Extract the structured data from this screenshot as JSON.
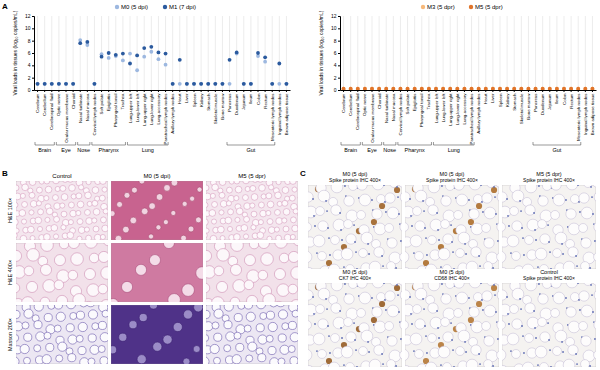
{
  "chart_data": [
    {
      "type": "scatter",
      "y_label": "Viral loads in tissues (log₁₀ copies/mL)",
      "categories": [
        "Cerebrum",
        "Cerebellum",
        "Cerebrospinal fluid",
        "Optic nerve",
        "Ocular mucus membrane",
        "Choroid",
        "Nasal turbinate",
        "Nasal mucosa",
        "Cervical lymph nodes",
        "Soft palate",
        "Epiglottis",
        "Pharyngeal tonsil",
        "Trachea",
        "Lung-upper left",
        "Lung-lower left",
        "Lung-upper right",
        "Lung-lower right",
        "Lung-accessory",
        "Paratracheal lymph nodes",
        "Axillary lymph nodes",
        "Heart",
        "Liver",
        "Spleen",
        "Kidney",
        "Stomach",
        "Skeletal muscle",
        "Bone marrow",
        "Pancreas",
        "Duodenum",
        "Jejunum",
        "Ileum",
        "Colon",
        "Rectum",
        "Mesenteric lymph nodes",
        "Inguinal lymph nodes",
        "Brown adipose tissue"
      ],
      "groups": [
        {
          "label": "Brain",
          "start": 0,
          "end": 2
        },
        {
          "label": "Eye",
          "start": 3,
          "end": 5
        },
        {
          "label": "Nose",
          "start": 6,
          "end": 7
        },
        {
          "label": "Pharynx",
          "start": 8,
          "end": 12
        },
        {
          "label": "Lung",
          "start": 13,
          "end": 18
        },
        {
          "label": "Gut",
          "start": 27,
          "end": 33
        }
      ],
      "series": [
        {
          "name": "M0 (5 dpi)",
          "color": "#9db8e0",
          "values": [
            1,
            1,
            1,
            1,
            1,
            1,
            8.1,
            7.3,
            1,
            5.8,
            5.2,
            5.5,
            4.8,
            5.9,
            3.2,
            5.4,
            6.2,
            5.0,
            4.1,
            1,
            1,
            1,
            1,
            1,
            1,
            1,
            1,
            1,
            5.9,
            1,
            1,
            5.5,
            4.6,
            1,
            1,
            1
          ]
        },
        {
          "name": "M1 (7 dpi)",
          "color": "#2b5a9e",
          "values": [
            1,
            1,
            1,
            1,
            1,
            1,
            7.6,
            7.8,
            1,
            5.4,
            6.0,
            5.7,
            5.9,
            4.3,
            5.6,
            6.8,
            7.0,
            6.1,
            5.9,
            1,
            4.9,
            1,
            1,
            1,
            1,
            1,
            1,
            4.9,
            6.1,
            1,
            1,
            6.0,
            5.3,
            1,
            4.3,
            1
          ]
        }
      ],
      "ylim": [
        0,
        12
      ],
      "yticks": [
        0,
        2,
        4,
        6,
        8,
        10,
        12
      ],
      "grid": true,
      "legend": "top",
      "marker": "circle"
    },
    {
      "type": "scatter",
      "y_label": "Viral loads in tissues (log₁₀ copies/mL)",
      "categories": [
        "Cerebrum",
        "Cerebellum",
        "Cerebrospinal fluid",
        "Optic nerve",
        "Ocular mucus membrane",
        "Choroid",
        "Nasal turbinate",
        "Nasal mucosa",
        "Cervical lymph nodes",
        "Soft palate",
        "Epiglottis",
        "Pharyngeal tonsil",
        "Trachea",
        "Lung-upper left",
        "Lung-lower left",
        "Lung-upper right",
        "Lung-lower right",
        "Lung-accessory",
        "Paratracheal lymph nodes",
        "Axillary lymph nodes",
        "Heart",
        "Liver",
        "Spleen",
        "Kidney",
        "Stomach",
        "Skeletal muscle",
        "Bone marrow",
        "Pancreas",
        "Duodenum",
        "Jejunum",
        "Ileum",
        "Colon",
        "Rectum",
        "Mesenteric lymph nodes",
        "Inguinal lymph nodes",
        "Brown adipose tissue"
      ],
      "groups": [
        {
          "label": "Brain",
          "start": 0,
          "end": 2
        },
        {
          "label": "Eye",
          "start": 3,
          "end": 5
        },
        {
          "label": "Nose",
          "start": 6,
          "end": 7
        },
        {
          "label": "Pharynx",
          "start": 8,
          "end": 12
        },
        {
          "label": "Lung",
          "start": 13,
          "end": 18
        },
        {
          "label": "Gut",
          "start": 27,
          "end": 33
        }
      ],
      "series": [
        {
          "name": "M3 (5 dpr)",
          "color": "#f7b97a",
          "values": [
            0.2,
            0.2,
            0.2,
            0.2,
            0.2,
            0.2,
            0.2,
            0.2,
            0.2,
            0.2,
            0.2,
            0.2,
            0.2,
            0.2,
            0.2,
            0.2,
            0.2,
            0.2,
            0.2,
            0.2,
            0.2,
            0.2,
            0.2,
            0.2,
            0.2,
            0.2,
            0.2,
            0.2,
            0.2,
            0.2,
            0.2,
            0.2,
            0.2,
            0.2,
            0.2,
            0.2
          ]
        },
        {
          "name": "M5 (5 dpr)",
          "color": "#e0742a",
          "values": [
            0.2,
            0.2,
            0.2,
            0.2,
            0.2,
            0.2,
            0.2,
            0.2,
            0.2,
            0.2,
            0.2,
            0.2,
            0.2,
            0.2,
            0.2,
            0.2,
            0.2,
            0.2,
            0.2,
            0.2,
            0.2,
            0.2,
            0.2,
            0.2,
            0.2,
            0.2,
            0.2,
            0.2,
            0.2,
            0.2,
            0.2,
            0.2,
            0.2,
            0.2,
            0.2,
            0.2
          ]
        }
      ],
      "ylim": [
        0,
        12
      ],
      "yticks": [
        0,
        2,
        4,
        6,
        8,
        10,
        12
      ],
      "grid": true,
      "legend": "top",
      "marker": "circle"
    }
  ],
  "panel_labels": [
    "A",
    "B",
    "C"
  ],
  "panel_b": {
    "columns": [
      "Control",
      "M0 (5 dpi)",
      "M5 (5 dpr)"
    ],
    "rows": [
      "H&E 100×",
      "H&E 400×",
      "Masson 200×"
    ]
  },
  "panel_c": {
    "cells": [
      {
        "header": "M0 (5 dpi)",
        "caption": "Spike protein IHC 400×"
      },
      {
        "header": "M0 (5 dpi)",
        "caption": "Spike protein IHC 400×"
      },
      {
        "header": "M5 (5 dpr)",
        "caption": "Spike protein IHC 400×"
      },
      {
        "header": "M0 (5 dpi)",
        "caption": "CK7 IHC 400×"
      },
      {
        "header": "M0 (5 dpi)",
        "caption": "CD68 IHC 400×"
      },
      {
        "header": "Control",
        "caption": "Spike protein IHC 400×"
      }
    ]
  }
}
